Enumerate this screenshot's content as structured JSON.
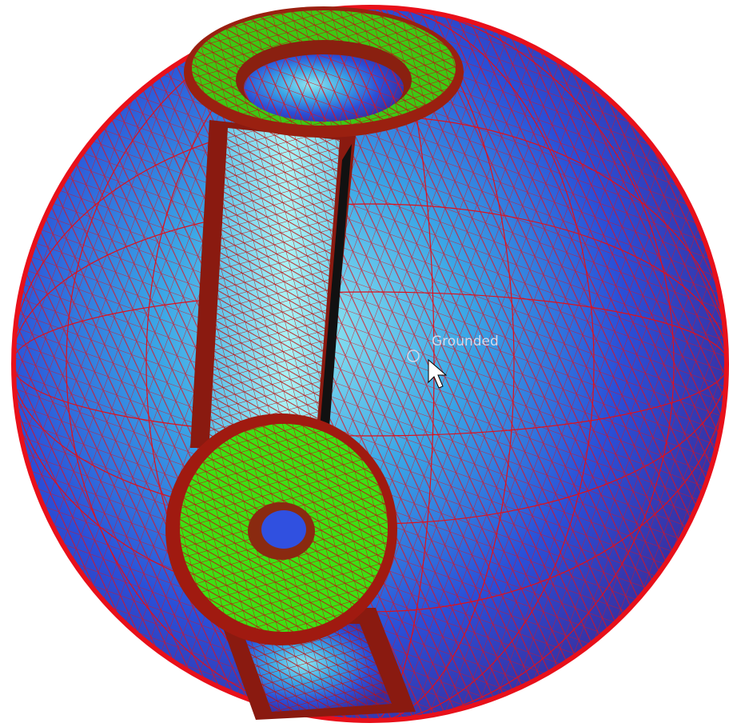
{
  "viewport": {
    "label": "Grounded"
  }
}
